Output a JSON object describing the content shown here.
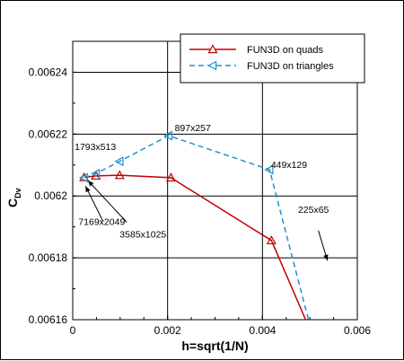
{
  "chart_data": {
    "type": "line",
    "xlabel": "h=sqrt(1/N)",
    "ylabel": "C",
    "ylabel_sub": "Dv",
    "xlim": [
      0,
      0.006
    ],
    "ylim": [
      0.00616,
      0.00625
    ],
    "x_ticks": [
      {
        "value": 0,
        "label": "0"
      },
      {
        "value": 0.002,
        "label": "0.002"
      },
      {
        "value": 0.004,
        "label": "0.004"
      },
      {
        "value": 0.006,
        "label": "0.006"
      }
    ],
    "y_ticks": [
      {
        "value": 0.00616,
        "label": "0.00616"
      },
      {
        "value": 0.00618,
        "label": "0.00618"
      },
      {
        "value": 0.0062,
        "label": "0.0062"
      },
      {
        "value": 0.00622,
        "label": "0.00622"
      },
      {
        "value": 0.00624,
        "label": "0.00624"
      }
    ],
    "grid": true,
    "legend_position": "top-right",
    "series": [
      {
        "name": "FUN3D on quads",
        "color": "#c00000",
        "dash": "solid",
        "marker": "triangle-up",
        "x": [
          0.00024,
          0.00049,
          0.00099,
          0.00207,
          0.00419,
          0.00491
        ],
        "y": [
          0.006206,
          0.0062065,
          0.0062067,
          0.0062059,
          0.0061856,
          0.00616
        ]
      },
      {
        "name": "FUN3D on triangles",
        "color": "#1e90d0",
        "dash": "dashed",
        "marker": "triangle-left",
        "x": [
          0.00024,
          0.00049,
          0.00099,
          0.00202,
          0.00415,
          0.00497
        ],
        "y": [
          0.0062059,
          0.0062072,
          0.0062112,
          0.0062195,
          0.0062085,
          0.00616
        ]
      }
    ],
    "annotations": [
      {
        "text": "897x257",
        "x": 0.00215,
        "y": 0.006221,
        "arrow_to": null
      },
      {
        "text": "1793x513",
        "x": 4e-05,
        "y": 0.0062148,
        "arrow_to": null
      },
      {
        "text": "449x129",
        "x": 0.00418,
        "y": 0.006209,
        "arrow_to": null
      },
      {
        "text": "225x65",
        "x": 0.00475,
        "y": 0.0061945,
        "arrow_to": null
      },
      {
        "text": "7169x2049",
        "x": 0.00012,
        "y": 0.0061906,
        "arrow_to": null
      },
      {
        "text": "3585x1025",
        "x": 0.00099,
        "y": 0.0061865,
        "arrow_to": null
      }
    ],
    "arrows": [
      {
        "from": [
          0.00114,
          0.0061915
        ],
        "to": [
          0.00032,
          0.006205
        ]
      },
      {
        "from": [
          0.00064,
          0.0061918
        ],
        "to": [
          0.00027,
          0.0062032
        ]
      },
      {
        "from": [
          0.00518,
          0.0061888
        ],
        "to": [
          0.00537,
          0.0061791
        ]
      }
    ]
  }
}
